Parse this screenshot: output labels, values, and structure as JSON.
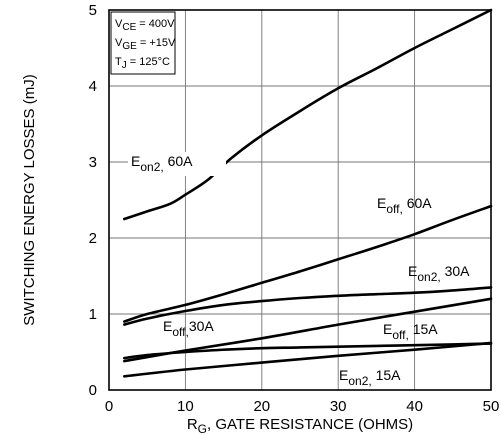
{
  "chart_data": {
    "type": "line",
    "xlabel": "R_G, GATE RESISTANCE (OHMS)",
    "ylabel": "SWITCHING ENERGY LOSSES (mJ)",
    "xlim": [
      0,
      50
    ],
    "ylim": [
      0,
      5
    ],
    "x_ticks": [
      0,
      10,
      20,
      30,
      40,
      50
    ],
    "y_ticks": [
      0,
      1,
      2,
      3,
      4,
      5
    ],
    "grid": true,
    "conditions": [
      {
        "sym": "V",
        "sub": "CE",
        "val": "= 400V"
      },
      {
        "sym": "V",
        "sub": "GE",
        "val": "= +15V"
      },
      {
        "sym": "T",
        "sub": "J",
        "val": "= 125°C"
      }
    ],
    "series": [
      {
        "name": "E_on2, 60A",
        "main": "E",
        "sub": "on2,",
        "rest": " 60A",
        "x": [
          2,
          5,
          8,
          10,
          13,
          16,
          20,
          25,
          30,
          35,
          40,
          45,
          50
        ],
        "y": [
          2.25,
          2.35,
          2.45,
          2.57,
          2.77,
          3.05,
          3.35,
          3.67,
          3.97,
          4.23,
          4.5,
          4.75,
          5.0
        ]
      },
      {
        "name": "E_off, 60A",
        "main": "E",
        "sub": "off,",
        "rest": " 60A",
        "x": [
          2,
          5,
          10,
          15,
          20,
          25,
          30,
          35,
          40,
          45,
          50
        ],
        "y": [
          0.9,
          1.0,
          1.12,
          1.26,
          1.41,
          1.56,
          1.72,
          1.88,
          2.05,
          2.24,
          2.42
        ]
      },
      {
        "name": "E_on2, 30A",
        "main": "E",
        "sub": "on2,",
        "rest": " 30A",
        "x": [
          2,
          5,
          10,
          15,
          20,
          25,
          30,
          35,
          40,
          45,
          50
        ],
        "y": [
          0.86,
          0.94,
          1.04,
          1.12,
          1.17,
          1.21,
          1.24,
          1.26,
          1.28,
          1.31,
          1.35
        ]
      },
      {
        "name": "E_off, 30A",
        "main": "E",
        "sub": "off,",
        "rest": "30A",
        "x": [
          2,
          10,
          20,
          30,
          40,
          50
        ],
        "y": [
          0.38,
          0.52,
          0.68,
          0.86,
          1.03,
          1.2
        ]
      },
      {
        "name": "E_off, 15A",
        "main": "E",
        "sub": "off,",
        "rest": " 15A",
        "x": [
          2,
          5,
          10,
          15,
          20,
          25,
          30,
          35,
          40,
          45,
          50
        ],
        "y": [
          0.42,
          0.46,
          0.5,
          0.53,
          0.55,
          0.56,
          0.57,
          0.58,
          0.59,
          0.6,
          0.61
        ]
      },
      {
        "name": "E_on2, 15A",
        "main": "E",
        "sub": "on2,",
        "rest": " 15A",
        "x": [
          2,
          10,
          20,
          30,
          40,
          50
        ],
        "y": [
          0.18,
          0.27,
          0.36,
          0.45,
          0.53,
          0.62
        ]
      }
    ]
  }
}
